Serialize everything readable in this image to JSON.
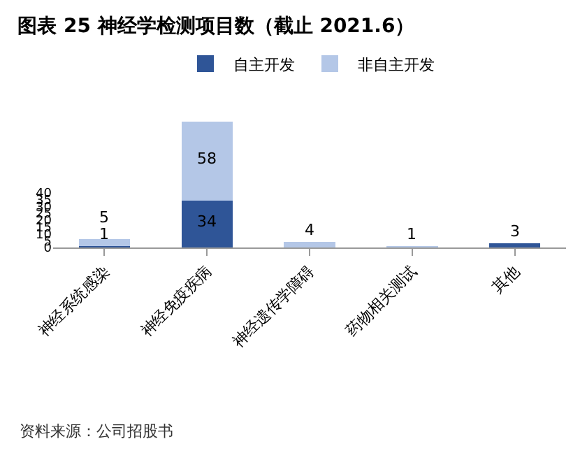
{
  "chart_data": {
    "type": "bar",
    "title": "图表 25 神经学检测项目数（截止 2021.6）",
    "stacked": true,
    "legend": "top",
    "data_labels": true,
    "categories": [
      "神经系统感染",
      "神经免疫疾病",
      "神经遗传学障碍",
      "药物相关测试",
      "其他"
    ],
    "series": [
      {
        "name": "自主开发",
        "color": "#2f5597",
        "values": [
          1,
          34,
          null,
          null,
          3
        ]
      },
      {
        "name": "非自主开发",
        "color": "#b4c7e7",
        "values": [
          5,
          58,
          4,
          1,
          null
        ]
      }
    ],
    "ylim": [
      0,
      92
    ],
    "yticks": [
      0,
      5,
      10,
      15,
      20,
      25,
      30,
      35,
      40
    ],
    "grid": false,
    "annotations": [
      "资料来源：公司招股书"
    ]
  }
}
